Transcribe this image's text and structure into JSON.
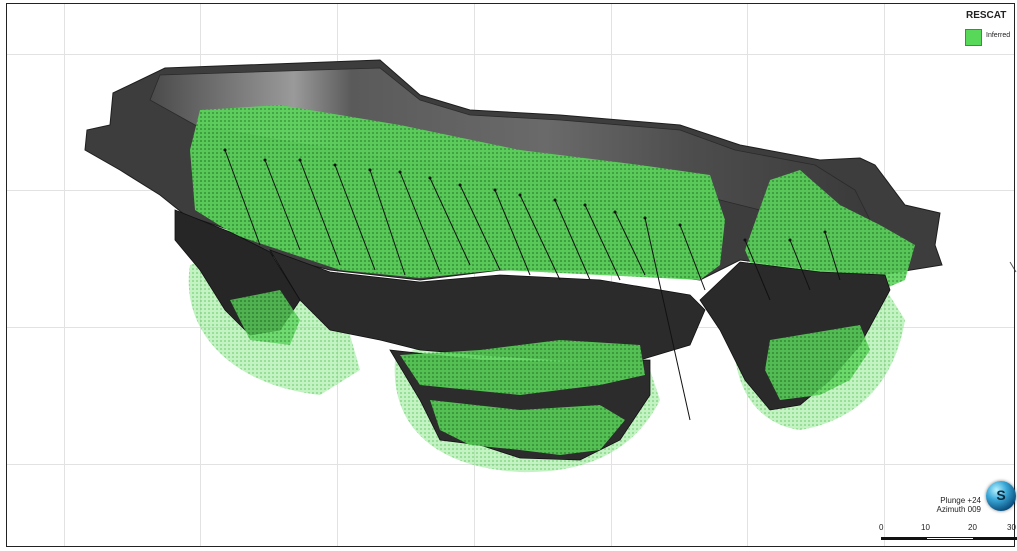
{
  "legend": {
    "title": "RESCAT",
    "items": [
      {
        "label": "Inferred",
        "color": "#58d858"
      }
    ]
  },
  "orientation": {
    "plunge": "Plunge +24",
    "azimuth": "Azimuth 009"
  },
  "compass": {
    "letter": "S"
  },
  "scale_bar": {
    "ticks": [
      "0",
      "10",
      "20",
      "30"
    ]
  },
  "colors": {
    "pit_surface": "#3b3b3b",
    "pit_wall_light": "#8c8c8c",
    "orebody": "#4fd04f",
    "grid": "#e2e2e2"
  }
}
